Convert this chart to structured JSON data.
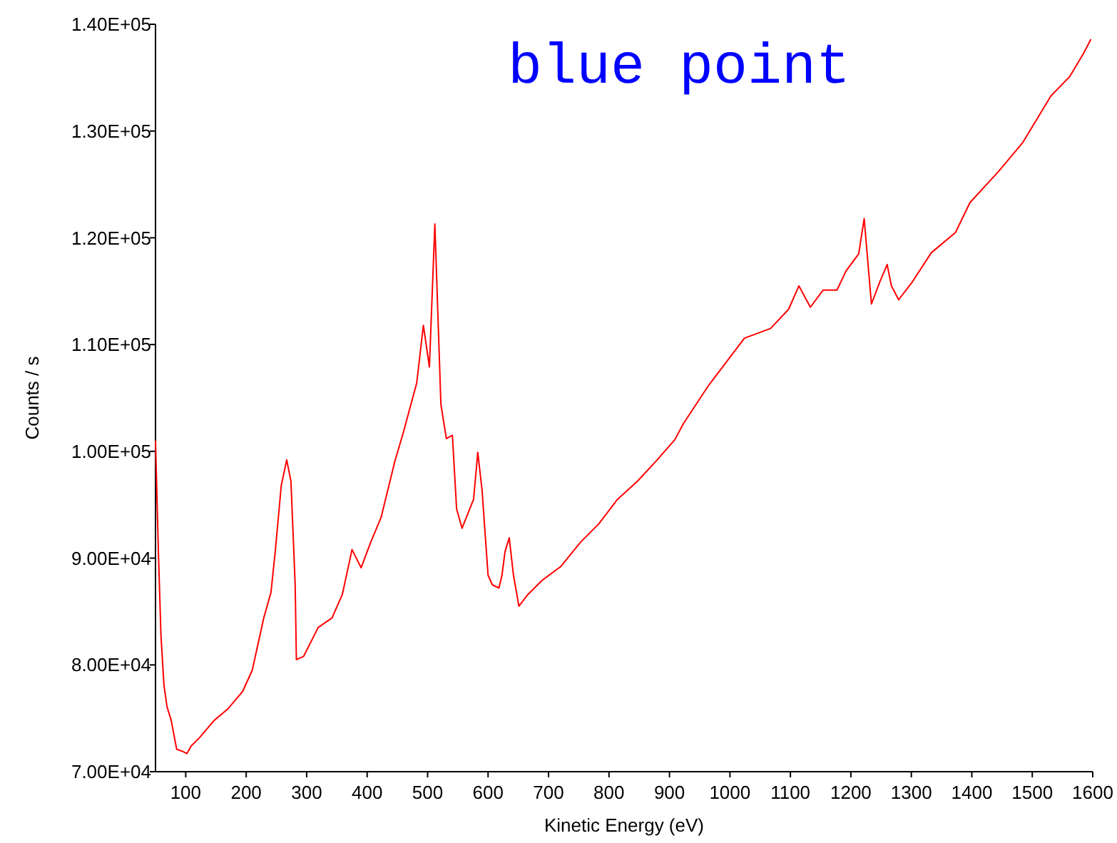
{
  "chart_data": {
    "type": "line",
    "title": "blue point",
    "xlabel": "Kinetic Energy (eV)",
    "ylabel": "Counts / s",
    "xlim": [
      50,
      1600
    ],
    "xticks": [
      100,
      200,
      300,
      400,
      500,
      600,
      700,
      800,
      900,
      1000,
      1100,
      1200,
      1300,
      1400,
      1500,
      1600
    ],
    "ylim": [
      70000,
      140000
    ],
    "yticks": [
      {
        "value": 70000,
        "label": "7.00E+04"
      },
      {
        "value": 80000,
        "label": "8.00E+04"
      },
      {
        "value": 90000,
        "label": "9.00E+04"
      },
      {
        "value": 100000,
        "label": "1.00E+05"
      },
      {
        "value": 110000,
        "label": "1.10E+05"
      },
      {
        "value": 120000,
        "label": "1.20E+05"
      },
      {
        "value": 130000,
        "label": "1.30E+05"
      },
      {
        "value": 140000,
        "label": "1.40E+05"
      }
    ],
    "grid": false,
    "marker": "none",
    "line_style": "solid",
    "series": [
      {
        "color": "#ff0000",
        "x": [
          50,
          55,
          59,
          64,
          69,
          76,
          85,
          95,
          102,
          109,
          123,
          147,
          170,
          194,
          210,
          229,
          241,
          248,
          258,
          267,
          274,
          281,
          283,
          295,
          319,
          342,
          359,
          375,
          390,
          406,
          423,
          446,
          460,
          482,
          493,
          503,
          512,
          522,
          531,
          541,
          548,
          557,
          576,
          583,
          590,
          600,
          607,
          618,
          623,
          628,
          635,
          642,
          651,
          666,
          689,
          720,
          753,
          783,
          814,
          847,
          878,
          909,
          923,
          965,
          1024,
          1067,
          1097,
          1114,
          1133,
          1154,
          1177,
          1192,
          1213,
          1222,
          1234,
          1248,
          1260,
          1267,
          1279,
          1302,
          1333,
          1373,
          1397,
          1444,
          1484,
          1531,
          1562,
          1585,
          1597
        ],
        "values": [
          101000,
          90200,
          82800,
          78100,
          76100,
          74800,
          72100,
          71900,
          71700,
          72400,
          73200,
          74800,
          75900,
          77500,
          79500,
          84400,
          86800,
          90600,
          96800,
          99200,
          97200,
          87500,
          80500,
          80800,
          83500,
          84400,
          86600,
          90800,
          89100,
          91500,
          93800,
          99100,
          101800,
          106400,
          111800,
          107900,
          121300,
          104400,
          101200,
          101500,
          94600,
          92800,
          95500,
          99900,
          96400,
          88400,
          87500,
          87200,
          88400,
          90600,
          91900,
          88400,
          85500,
          86600,
          87900,
          89200,
          91500,
          93200,
          95500,
          97200,
          99100,
          101100,
          102600,
          106200,
          110600,
          111500,
          113300,
          115500,
          113500,
          115100,
          115100,
          116900,
          118500,
          121800,
          113800,
          115900,
          117500,
          115500,
          114200,
          115900,
          118600,
          120500,
          123300,
          126200,
          128900,
          133300,
          135100,
          137300,
          138600
        ]
      }
    ]
  }
}
